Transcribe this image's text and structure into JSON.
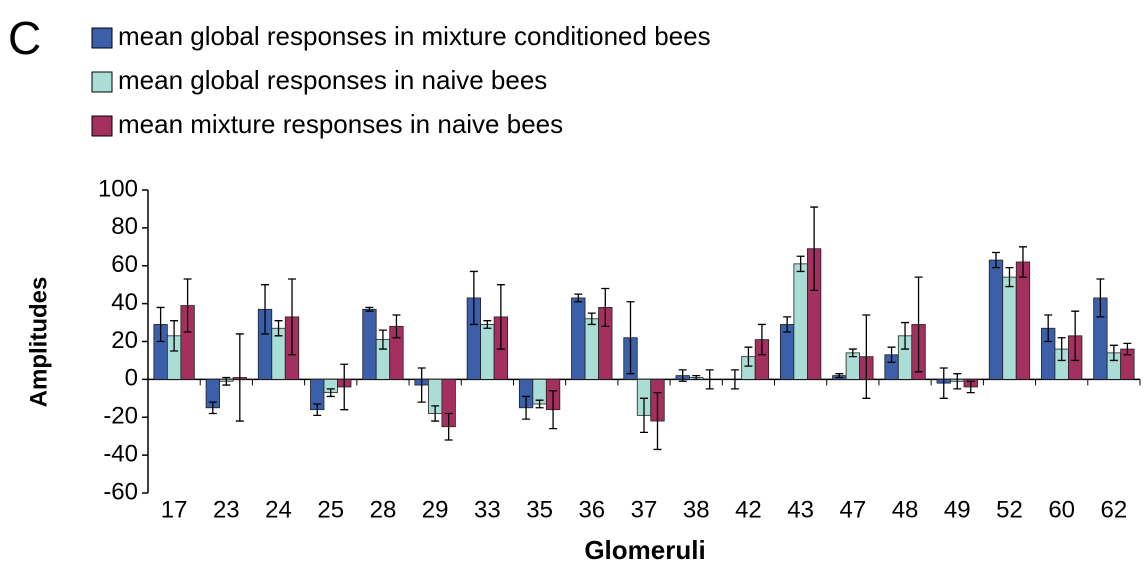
{
  "chart_data": {
    "type": "bar",
    "panel_label": "C",
    "y_label": "Amplitudes",
    "x_label": "Glomeruli",
    "categories": [
      "17",
      "23",
      "24",
      "25",
      "28",
      "29",
      "33",
      "35",
      "36",
      "37",
      "38",
      "42",
      "43",
      "47",
      "48",
      "49",
      "52",
      "60",
      "62"
    ],
    "series": [
      {
        "name": "mean global responses in mixture conditioned bees",
        "color": "#3b5fa8",
        "values": [
          29,
          -15,
          37,
          -16,
          37,
          -3,
          43,
          -15,
          43,
          22,
          2,
          0,
          29,
          2,
          13,
          -2,
          63,
          27,
          43
        ],
        "errors": [
          9,
          3,
          13,
          3,
          1,
          9,
          14,
          6,
          2,
          19,
          3,
          5,
          4,
          1,
          4,
          8,
          4,
          7,
          10
        ]
      },
      {
        "name": "mean global responses in naive bees",
        "color": "#a9ddd5",
        "values": [
          23,
          -1,
          27,
          -7,
          21,
          -18,
          29,
          -13,
          32,
          -19,
          1,
          12,
          61,
          14,
          23,
          -1,
          54,
          16,
          14
        ],
        "errors": [
          8,
          2,
          4,
          2,
          5,
          4,
          2,
          2,
          3,
          9,
          1,
          5,
          4,
          2,
          7,
          4,
          5,
          6,
          4
        ]
      },
      {
        "name": "mean mixture responses in naive bees",
        "color": "#a4305f",
        "values": [
          39,
          1,
          33,
          -4,
          28,
          -25,
          33,
          -16,
          38,
          -22,
          0,
          21,
          69,
          12,
          29,
          -4,
          62,
          23,
          16
        ],
        "errors": [
          14,
          23,
          20,
          12,
          6,
          7,
          17,
          10,
          10,
          15,
          5,
          8,
          22,
          22,
          25,
          3,
          8,
          13,
          3
        ]
      }
    ],
    "ylim": [
      -60,
      100
    ],
    "yticks": [
      100,
      80,
      60,
      40,
      20,
      0,
      -20,
      -40,
      -60
    ]
  }
}
